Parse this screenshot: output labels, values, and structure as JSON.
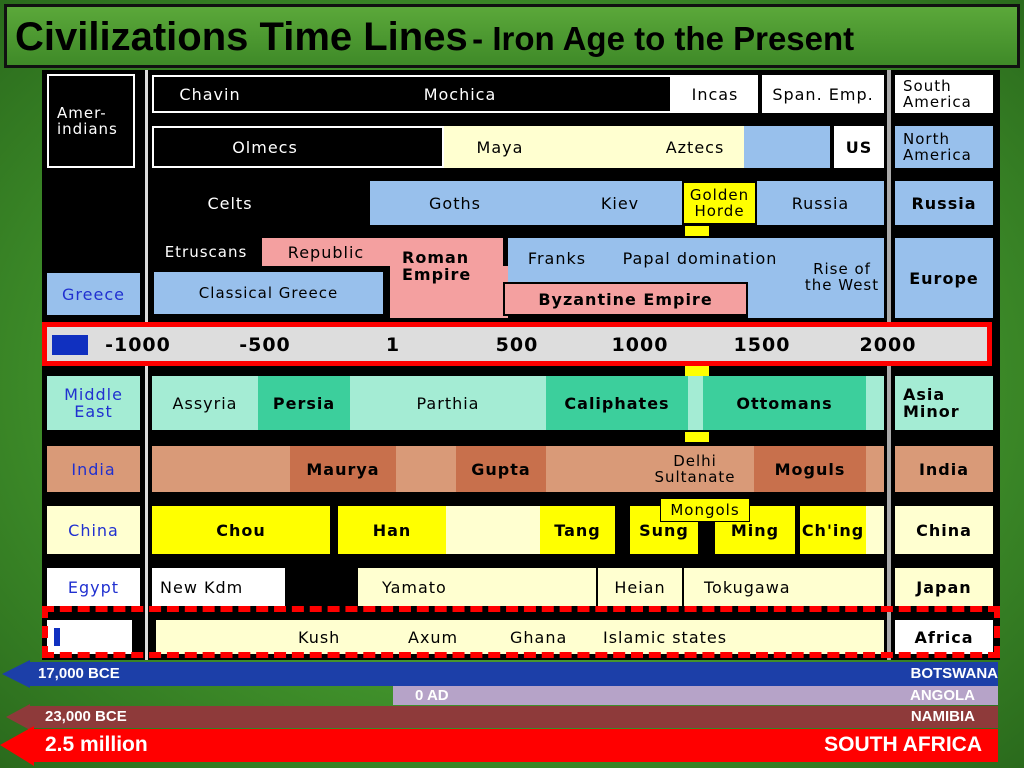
{
  "title": {
    "main": "Civilizations Time Lines",
    "sub": "- Iron Age to the Present"
  },
  "americas": {
    "label": "Amer-indians",
    "south": [
      "Chavin",
      "Mochica",
      "Incas",
      "Span. Emp."
    ],
    "south_label": "South America",
    "north": [
      "Olmecs",
      "Maya",
      "Aztecs",
      "US"
    ],
    "north_label": "North America"
  },
  "russia": {
    "blocks": [
      "Celts",
      "Goths",
      "Kiev",
      "Golden Horde",
      "Russia"
    ],
    "label": "Russia"
  },
  "europe": {
    "left": "Greece",
    "blocks": [
      "Etruscans",
      "Republic",
      "Roman Empire",
      "Franks",
      "Papal domination",
      "Rise of the West",
      "Classical Greece",
      "Byzantine Empire"
    ],
    "label": "Europe"
  },
  "timeline": {
    "ticks": [
      "-1000",
      "-500",
      "1",
      "500",
      "1000",
      "1500",
      "2000"
    ]
  },
  "middle_east": {
    "left": "Middle East",
    "blocks": [
      "Assyria",
      "Persia",
      "Parthia",
      "Caliphates",
      "Ottomans"
    ],
    "label": "Asia Minor"
  },
  "india": {
    "left": "India",
    "blocks": [
      "Maurya",
      "Gupta",
      "Delhi Sultanate",
      "Moguls"
    ],
    "label": "India"
  },
  "china": {
    "left": "China",
    "blocks": [
      "Chou",
      "Han",
      "Tang",
      "Sung",
      "Mongols",
      "Ming",
      "Ch'ing"
    ],
    "label": "China"
  },
  "japan": {
    "left": "Egypt",
    "blocks": [
      "New Kdm",
      "Yamato",
      "Heian",
      "Tokugawa"
    ],
    "label": "Japan"
  },
  "africa": {
    "blocks": [
      "Kush",
      "Axum",
      "Ghana",
      "Islamic states"
    ],
    "label": "Africa"
  },
  "bands": [
    {
      "start": "17,000 BCE",
      "country": "BOTSWANA"
    },
    {
      "start": "0 AD",
      "country": "ANGOLA"
    },
    {
      "start": "23,000 BCE",
      "country": "NAMIBIA"
    },
    {
      "start": "2.5 million",
      "country": "SOUTH AFRICA"
    }
  ]
}
